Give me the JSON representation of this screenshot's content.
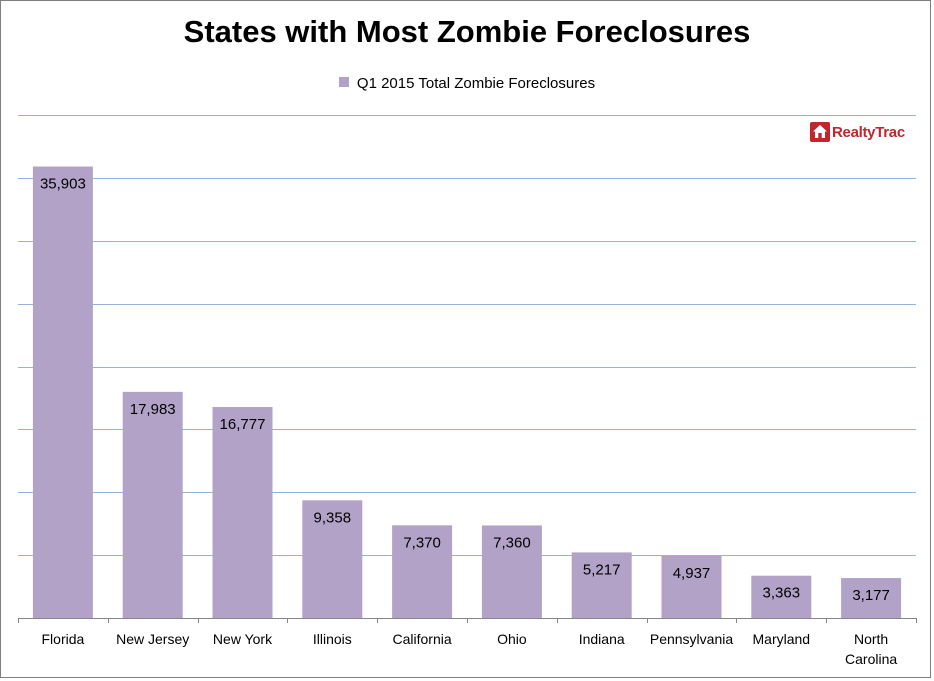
{
  "chart_data": {
    "type": "bar",
    "title": "States with Most Zombie Foreclosures",
    "categories": [
      "Florida",
      "New Jersey",
      "New York",
      "Illinois",
      "California",
      "Ohio",
      "Indiana",
      "Pennsylvania",
      "Maryland",
      "North Carolina"
    ],
    "series": [
      {
        "name": "Q1 2015 Total Zombie Foreclosures",
        "values": [
          35903,
          17983,
          16777,
          9358,
          7370,
          7360,
          5217,
          4937,
          3363,
          3177
        ],
        "labels": [
          "35,903",
          "17,983",
          "16,777",
          "9,358",
          "7,370",
          "7,360",
          "5,217",
          "4,937",
          "3,363",
          "3,177"
        ]
      }
    ],
    "ylim": [
      0,
      40000
    ],
    "grid": true,
    "legend_position": "top",
    "bar_color": "#b3a2c7",
    "grid_color": "#95b3d7"
  },
  "logo": {
    "text": "RealtyTrac",
    "icon": "house-icon",
    "color": "#c0272d"
  }
}
